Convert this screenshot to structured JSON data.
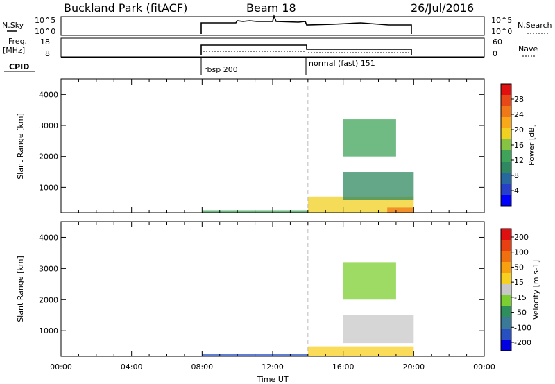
{
  "header": {
    "station": "Buckland Park (fitACF)",
    "beam": "Beam 18",
    "date": "26/Jul/2016"
  },
  "noise_panel": {
    "left_label": "N.Sky",
    "left_ticks": [
      "10^5",
      "10^0"
    ],
    "right_ticks": [
      "10^5",
      "10^0"
    ],
    "right_label": "N.Search"
  },
  "freq_panel": {
    "left_label_1": "Freq.",
    "left_label_2": "[MHz]",
    "left_ticks": [
      "18",
      "8"
    ],
    "right_ticks": [
      "60",
      "0"
    ],
    "right_label": "Nave"
  },
  "cpid_panel": {
    "label": "CPID",
    "modes": [
      {
        "name": "rbsp 200",
        "start": 8.0,
        "end": 14.0
      },
      {
        "name": "normal (fast) 151",
        "start": 14.0,
        "end": 20.0
      }
    ]
  },
  "chart_data": [
    {
      "type": "heatmap",
      "name": "power",
      "ylabel": "Slant Range [km]",
      "xlim": [
        0,
        24
      ],
      "ylim": [
        180,
        4500
      ],
      "yticks": [
        1000,
        2000,
        3000,
        4000
      ],
      "colorbar": {
        "label": "Power [dB]",
        "range": [
          0,
          32
        ],
        "ticks": [
          "4",
          "8",
          "12",
          "16",
          "20",
          "24",
          "28"
        ],
        "colors": [
          "#0000ff",
          "#2840c8",
          "#2868a0",
          "#308860",
          "#3fa45a",
          "#86c244",
          "#f0d020",
          "#f8a818",
          "#f07818",
          "#e84818",
          "#e01010"
        ]
      },
      "features": [
        {
          "t0": 8.0,
          "t1": 14.0,
          "r0": 190,
          "r1": 260,
          "level": 12
        },
        {
          "t0": 14.0,
          "t1": 20.0,
          "r0": 190,
          "r1": 700,
          "level": 18
        },
        {
          "t0": 18.5,
          "t1": 20.0,
          "r0": 190,
          "r1": 350,
          "level": 26
        },
        {
          "t0": 16.0,
          "t1": 20.0,
          "r0": 600,
          "r1": 1500,
          "level": 10
        },
        {
          "t0": 16.0,
          "t1": 19.0,
          "r0": 2000,
          "r1": 3200,
          "level": 12
        }
      ]
    },
    {
      "type": "heatmap",
      "name": "velocity",
      "ylabel": "Slant Range [km]",
      "xlabel": "Time UT",
      "xlim": [
        0,
        24
      ],
      "ylim": [
        180,
        4500
      ],
      "yticks": [
        1000,
        2000,
        3000,
        4000
      ],
      "xticks": [
        "00:00",
        "04:00",
        "08:00",
        "12:00",
        "16:00",
        "20:00",
        "00:00"
      ],
      "colorbar": {
        "label": "Velocity [m s-1]",
        "range": [
          -250,
          250
        ],
        "ticks": [
          "200",
          "100",
          "50",
          "15",
          "-15",
          "-50",
          "-100",
          "-200"
        ],
        "colors": [
          "#0000e0",
          "#2850c0",
          "#3a7a98",
          "#2e8f5c",
          "#7ccf30",
          "#c8c8c8",
          "#f8d020",
          "#f8a010",
          "#f07010",
          "#e84010",
          "#e01010"
        ]
      },
      "features": [
        {
          "t0": 8.0,
          "t1": 14.0,
          "r0": 190,
          "r1": 260,
          "level": -200
        },
        {
          "t0": 14.0,
          "t1": 20.0,
          "r0": 190,
          "r1": 500,
          "level": 30
        },
        {
          "t0": 16.0,
          "t1": 20.0,
          "r0": 600,
          "r1": 1500,
          "level": 20
        },
        {
          "t0": 16.0,
          "t1": 19.0,
          "r0": 2000,
          "r1": 3200,
          "level": -30
        }
      ]
    }
  ]
}
